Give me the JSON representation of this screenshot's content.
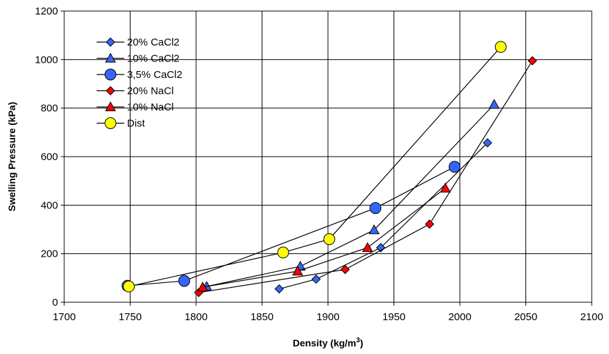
{
  "chart_data": {
    "type": "scatter",
    "title": "",
    "xlabel": "Density (kg/m",
    "xlabel_sup": "3",
    "xlabel_end": ")",
    "ylabel": "Swelling Pressure (kPa)",
    "xlim": [
      1700,
      2100
    ],
    "ylim": [
      0,
      1200
    ],
    "xticks": [
      1700,
      1750,
      1800,
      1850,
      1900,
      1950,
      2000,
      2050,
      2100
    ],
    "yticks": [
      0,
      200,
      400,
      600,
      800,
      1000,
      1200
    ],
    "grid": true,
    "legend_position": "top-left",
    "series": [
      {
        "name": "20% CaCl2",
        "marker": "diamond",
        "color": "#3366ff",
        "x": [
          1863,
          1891,
          1940,
          2021
        ],
        "y": [
          55,
          95,
          225,
          657
        ]
      },
      {
        "name": "10% CaCl2",
        "marker": "triangle",
        "color": "#3366ff",
        "x": [
          1808,
          1879,
          1935,
          2026
        ],
        "y": [
          65,
          148,
          298,
          815
        ]
      },
      {
        "name": "3,5% CaCl2",
        "marker": "circle",
        "color": "#3366ff",
        "x": [
          1748,
          1791,
          1936,
          1996
        ],
        "y": [
          68,
          88,
          388,
          558
        ]
      },
      {
        "name": "20% NaCl",
        "marker": "diamond",
        "color": "#ff0000",
        "x": [
          1802,
          1913,
          1977,
          2055
        ],
        "y": [
          40,
          135,
          322,
          995
        ]
      },
      {
        "name": "10% NaCl",
        "marker": "triangle",
        "color": "#ff0000",
        "x": [
          1805,
          1877,
          1930,
          1989
        ],
        "y": [
          62,
          128,
          225,
          470
        ]
      },
      {
        "name": "Dist",
        "marker": "circle",
        "color": "#ffff00",
        "x": [
          1749,
          1866,
          1901,
          2031
        ],
        "y": [
          65,
          205,
          260,
          1052
        ]
      }
    ]
  }
}
